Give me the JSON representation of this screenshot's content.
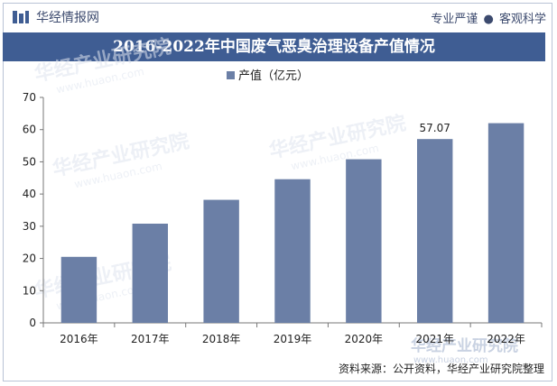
{
  "header": {
    "brand": "华经情报网",
    "tagline_left": "专业严谨",
    "tagline_right": "客观科学"
  },
  "colors": {
    "accent": "#3f5d93",
    "bar": "#6b7fa6",
    "text": "#3c4a6e"
  },
  "chart_data": {
    "type": "bar",
    "title": "2016-2022年中国废气恶臭治理设备产值情况",
    "categories": [
      "2016年",
      "2017年",
      "2018年",
      "2019年",
      "2020年",
      "2021年",
      "2022年"
    ],
    "series": [
      {
        "name": "产值（亿元）",
        "values": [
          20.5,
          30.8,
          38.2,
          44.6,
          50.8,
          57.07,
          62.0
        ],
        "data_labels": [
          null,
          null,
          null,
          null,
          null,
          "57.07",
          null
        ]
      }
    ],
    "ylim": [
      0,
      70
    ],
    "yticks": [
      0,
      10,
      20,
      30,
      40,
      50,
      60,
      70
    ],
    "grid": false,
    "legend": "top-center"
  },
  "footer": {
    "source": "资料来源：公开资料，华经产业研究院整理"
  },
  "watermark": {
    "text": "华经产业研究院",
    "url": "www.huaon.com"
  }
}
